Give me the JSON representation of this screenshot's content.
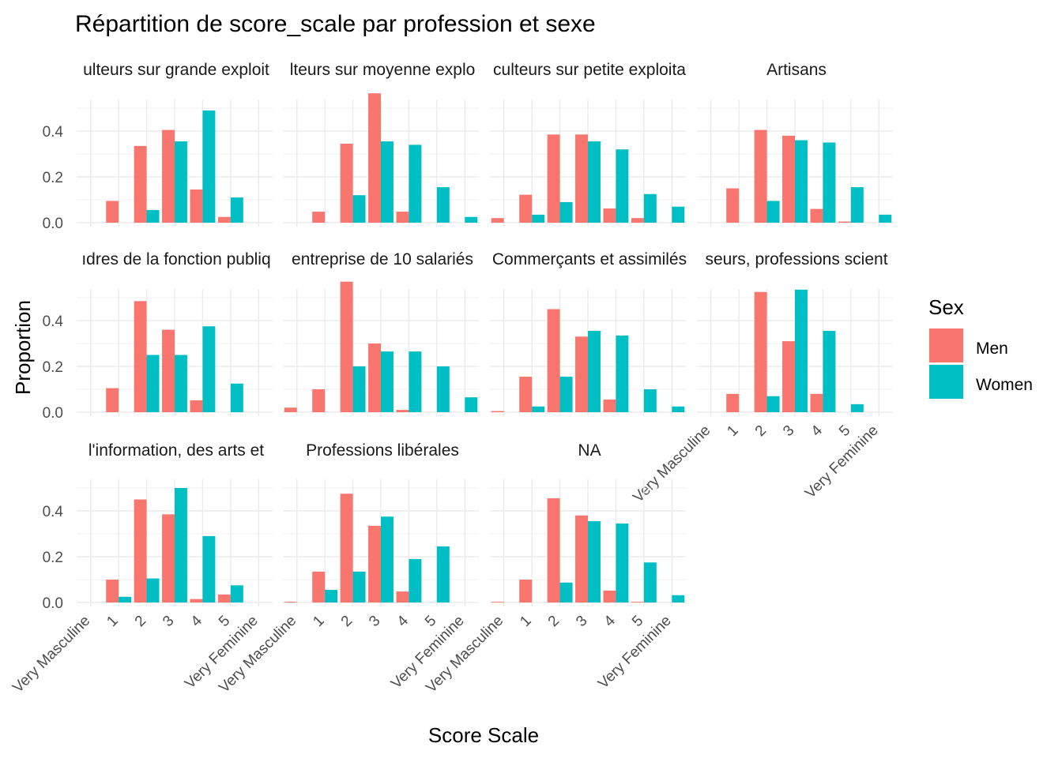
{
  "chart_data": {
    "type": "bar",
    "title": "Répartition de score_scale par profession et sexe",
    "xlabel": "Score Scale",
    "ylabel": "Proportion",
    "ylim": [
      0,
      0.6
    ],
    "y_ticks": [
      "0.0",
      "0.2",
      "0.4"
    ],
    "y_tick_values": [
      0,
      0.2,
      0.4
    ],
    "categories": [
      "Very Masculine",
      "1",
      "2",
      "3",
      "4",
      "5",
      "Very Feminine"
    ],
    "grid": true,
    "legend": {
      "title": "Sex",
      "position": "right",
      "entries": [
        {
          "name": "Men",
          "color": "#F8766D"
        },
        {
          "name": "Women",
          "color": "#00BFC4"
        }
      ]
    },
    "panels": [
      {
        "title": "ulteurs sur grande exploit",
        "series": [
          {
            "name": "Men",
            "values": [
              0,
              0.095,
              0.335,
              0.405,
              0.145,
              0.025,
              0
            ]
          },
          {
            "name": "Women",
            "values": [
              0,
              0,
              0.055,
              0.355,
              0.49,
              0.11,
              0
            ]
          }
        ]
      },
      {
        "title": "lteurs sur moyenne explo",
        "series": [
          {
            "name": "Men",
            "values": [
              0,
              0.048,
              0.345,
              0.565,
              0.048,
              0,
              0
            ]
          },
          {
            "name": "Women",
            "values": [
              0,
              0,
              0.12,
              0.355,
              0.34,
              0.155,
              0.025
            ]
          }
        ]
      },
      {
        "title": "culteurs sur petite exploita",
        "series": [
          {
            "name": "Men",
            "values": [
              0.02,
              0.122,
              0.385,
              0.385,
              0.062,
              0.02,
              0
            ]
          },
          {
            "name": "Women",
            "values": [
              0,
              0.035,
              0.09,
              0.355,
              0.32,
              0.125,
              0.07
            ]
          }
        ]
      },
      {
        "title": "Artisans",
        "series": [
          {
            "name": "Men",
            "values": [
              0,
              0.15,
              0.405,
              0.38,
              0.06,
              0.005,
              0
            ]
          },
          {
            "name": "Women",
            "values": [
              0,
              0,
              0.095,
              0.36,
              0.35,
              0.155,
              0.035
            ]
          }
        ]
      },
      {
        "title": "ıdres de la fonction publiq",
        "series": [
          {
            "name": "Men",
            "values": [
              0,
              0.105,
              0.485,
              0.36,
              0.052,
              0,
              0
            ]
          },
          {
            "name": "Women",
            "values": [
              0,
              0,
              0.25,
              0.25,
              0.375,
              0.125,
              0
            ]
          }
        ]
      },
      {
        "title": "entreprise de 10 salariés",
        "series": [
          {
            "name": "Men",
            "values": [
              0.02,
              0.1,
              0.57,
              0.3,
              0.01,
              0,
              0
            ]
          },
          {
            "name": "Women",
            "values": [
              0,
              0,
              0.2,
              0.265,
              0.265,
              0.2,
              0.065
            ]
          }
        ]
      },
      {
        "title": "Commerçants et assimilés",
        "series": [
          {
            "name": "Men",
            "values": [
              0.005,
              0.155,
              0.45,
              0.33,
              0.055,
              0,
              0
            ]
          },
          {
            "name": "Women",
            "values": [
              0,
              0.025,
              0.155,
              0.355,
              0.335,
              0.1,
              0.025
            ]
          }
        ]
      },
      {
        "title": "seurs, professions scient",
        "series": [
          {
            "name": "Men",
            "values": [
              0,
              0.08,
              0.525,
              0.31,
              0.08,
              0,
              0
            ]
          },
          {
            "name": "Women",
            "values": [
              0,
              0,
              0.07,
              0.535,
              0.355,
              0.035,
              0
            ]
          }
        ]
      },
      {
        "title": "l'information, des arts et",
        "series": [
          {
            "name": "Men",
            "values": [
              0,
              0.1,
              0.45,
              0.385,
              0.015,
              0.035,
              0
            ]
          },
          {
            "name": "Women",
            "values": [
              0,
              0.025,
              0.105,
              0.5,
              0.29,
              0.075,
              0
            ]
          }
        ]
      },
      {
        "title": "Professions libérales",
        "series": [
          {
            "name": "Men",
            "values": [
              0.003,
              0.135,
              0.475,
              0.335,
              0.048,
              0,
              0
            ]
          },
          {
            "name": "Women",
            "values": [
              0,
              0.055,
              0.135,
              0.375,
              0.19,
              0.245,
              0
            ]
          }
        ]
      },
      {
        "title": "NA",
        "series": [
          {
            "name": "Men",
            "values": [
              0.003,
              0.1,
              0.455,
              0.38,
              0.052,
              0.003,
              0
            ]
          },
          {
            "name": "Women",
            "values": [
              0,
              0,
              0.087,
              0.355,
              0.345,
              0.175,
              0.032
            ]
          }
        ]
      }
    ]
  }
}
